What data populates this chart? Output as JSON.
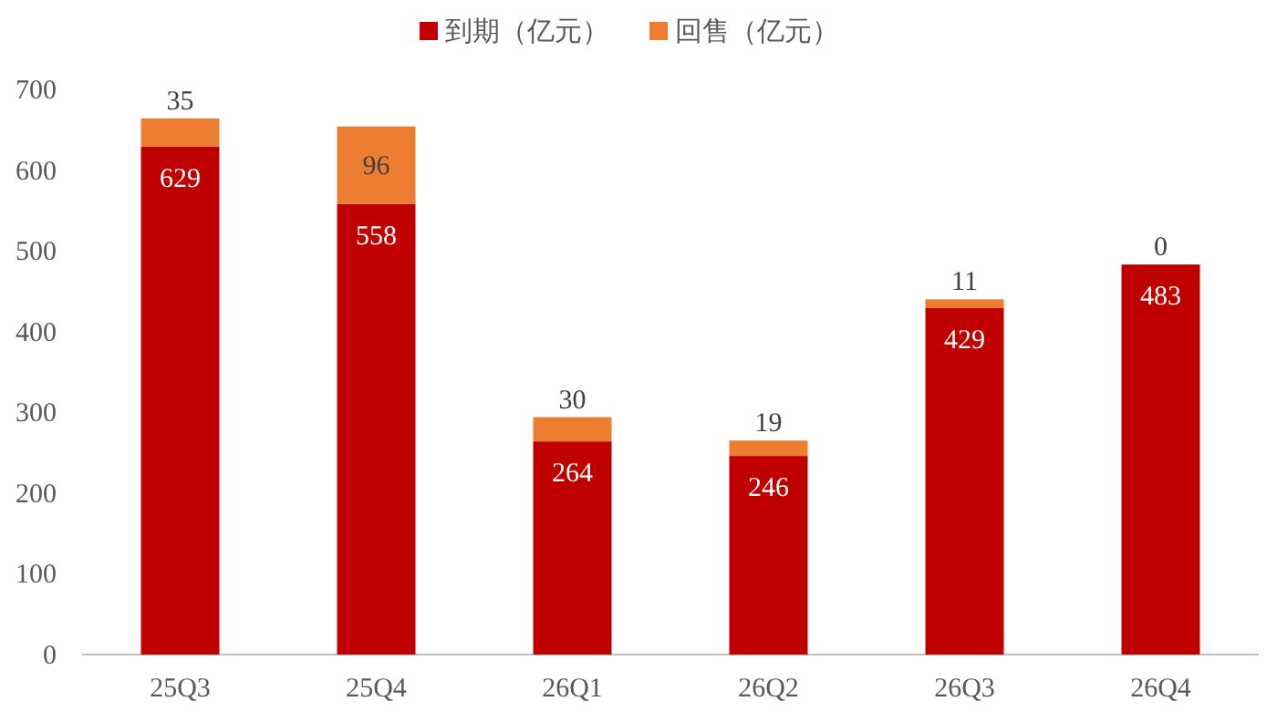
{
  "chart_data": {
    "type": "bar",
    "stacked": true,
    "categories": [
      "25Q3",
      "25Q4",
      "26Q1",
      "26Q2",
      "26Q3",
      "26Q4"
    ],
    "series": [
      {
        "name": "到期（亿元）",
        "color": "#c00000",
        "values": [
          629,
          558,
          264,
          246,
          429,
          483
        ]
      },
      {
        "name": "回售（亿元）",
        "color": "#ed7d31",
        "values": [
          35,
          96,
          30,
          19,
          11,
          0
        ]
      }
    ],
    "ylim": [
      0,
      700
    ],
    "yticks": [
      0,
      100,
      200,
      300,
      400,
      500,
      600,
      700
    ],
    "legend": "top",
    "data_labels": true
  }
}
